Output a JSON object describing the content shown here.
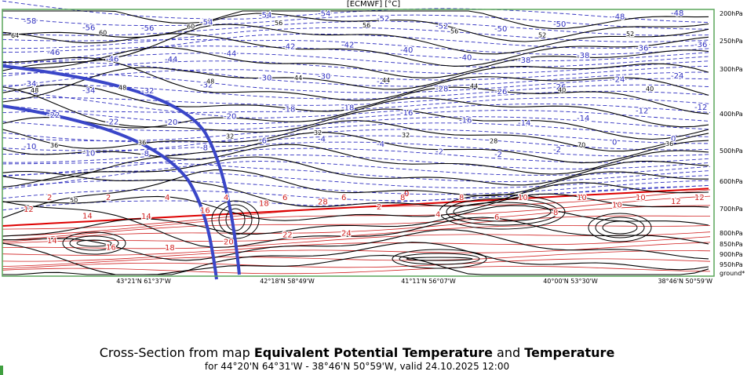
{
  "header": {
    "source_label": "[ECMWF] [°C]"
  },
  "title": {
    "prefix": "Cross-Section from map ",
    "field1": "Equivalent Potential Temperature",
    "connector": " and ",
    "field2": "Temperature",
    "subtitle": "for 44°20'N 64°31'W - 38°46'N 50°59'W, valid 24.10.2025 12:00"
  },
  "colors": {
    "theta_e": "#000000",
    "temp_below": "#2f2fc0",
    "temp_above": "#d02020",
    "freezing": "#dd0000",
    "thick_line": "#3a46c8",
    "frame": "#5aa55a"
  },
  "chart_data": {
    "type": "cross-section",
    "x_labels": [
      "43°21'N 61°37'W",
      "42°18'N 58°49'W",
      "41°11'N 56°07'W",
      "40°00'N 53°30'W",
      "38°46'N 50°59'W"
    ],
    "y_levels": [
      "200hPa",
      "250hPa",
      "300hPa",
      "400hPa",
      "500hPa",
      "600hPa",
      "700hPa",
      "800hPa",
      "850hPa",
      "900hPa",
      "950hPa",
      "ground*"
    ],
    "theta_e_labels": [
      "64",
      "60",
      "60",
      "56",
      "56",
      "56",
      "52",
      "52",
      "48",
      "48",
      "48",
      "44",
      "44",
      "44",
      "40",
      "40",
      "36",
      "36",
      "32",
      "32",
      "32",
      "28",
      "70",
      "36",
      "50"
    ],
    "temperature_labels": [
      "-58",
      "-56",
      "-56",
      "-54",
      "-54",
      "-54",
      "-52",
      "-52",
      "-50",
      "-50",
      "-48",
      "-48",
      "-46",
      "-46",
      "-44",
      "-44",
      "-42",
      "-42",
      "-40",
      "-40",
      "-38",
      "-38",
      "-36",
      "-36",
      "-34",
      "-34",
      "-32",
      "-32",
      "-30",
      "-30",
      "-28",
      "-28",
      "-26",
      "-26",
      "-24",
      "-24",
      "-22",
      "-22",
      "-20",
      "-20",
      "-18",
      "-18",
      "-16",
      "-16",
      "-14",
      "-14",
      "-12",
      "-12",
      "-10",
      "-10",
      "-8",
      "-8",
      "-6",
      "-4",
      "-4",
      "-2",
      "-2",
      "-2",
      "0",
      "0",
      "2",
      "2",
      "4",
      "4",
      "6",
      "6",
      "8",
      "8",
      "10",
      "10",
      "10",
      "12",
      "12",
      "14",
      "14",
      "16",
      "18",
      "28",
      "2",
      "4",
      "6",
      "8",
      "10",
      "12",
      "14",
      "16",
      "18",
      "20",
      "22",
      "24"
    ],
    "freezing_level_label": "0"
  }
}
